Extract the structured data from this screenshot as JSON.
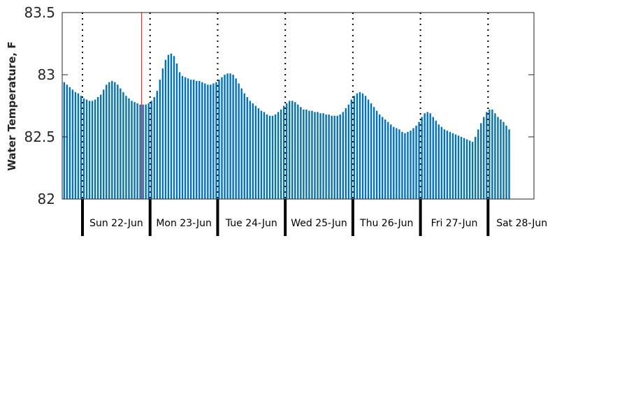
{
  "chart_data": {
    "type": "bar",
    "ylabel": "Water Temperature, F",
    "ylim": [
      82,
      83.5
    ],
    "yticks": [
      "82",
      "82.5",
      "83",
      "83.5"
    ],
    "bar_color": "#0072BD",
    "day_labels": [
      "Sun 22-Jun",
      "Mon 23-Jun",
      "Tue 24-Jun",
      "Wed 25-Jun",
      "Thu 26-Jun",
      "Fri 27-Jun",
      "Sat 28-Jun"
    ],
    "marker_color": "#FF0000",
    "hours_per_day": 24,
    "start_hour_offset": -7,
    "current_time_marker_hour": 21,
    "values": [
      82.94,
      82.92,
      82.9,
      82.88,
      82.86,
      82.85,
      82.83,
      82.81,
      82.8,
      82.79,
      82.79,
      82.8,
      82.82,
      82.84,
      82.88,
      82.92,
      82.94,
      82.95,
      82.94,
      82.92,
      82.89,
      82.86,
      82.83,
      82.81,
      82.79,
      82.78,
      82.77,
      82.76,
      82.76,
      82.76,
      82.77,
      82.79,
      82.82,
      82.87,
      82.96,
      83.05,
      83.12,
      83.16,
      83.17,
      83.15,
      83.09,
      83.02,
      82.99,
      82.98,
      82.97,
      82.96,
      82.96,
      82.95,
      82.95,
      82.94,
      82.93,
      82.92,
      82.92,
      82.93,
      82.94,
      82.96,
      82.98,
      83.0,
      83.01,
      83.01,
      83.0,
      82.97,
      82.93,
      82.89,
      82.85,
      82.82,
      82.79,
      82.77,
      82.75,
      82.73,
      82.71,
      82.7,
      82.68,
      82.67,
      82.67,
      82.68,
      82.7,
      82.72,
      82.75,
      82.77,
      82.79,
      82.79,
      82.78,
      82.76,
      82.74,
      82.72,
      82.72,
      82.71,
      82.71,
      82.7,
      82.7,
      82.69,
      82.69,
      82.68,
      82.68,
      82.67,
      82.67,
      82.67,
      82.68,
      82.7,
      82.73,
      82.76,
      82.8,
      82.83,
      82.85,
      82.86,
      82.85,
      82.83,
      82.8,
      82.77,
      82.74,
      82.71,
      82.68,
      82.66,
      82.64,
      82.62,
      82.6,
      82.58,
      82.57,
      82.56,
      82.54,
      82.53,
      82.54,
      82.55,
      82.57,
      82.59,
      82.62,
      82.66,
      82.69,
      82.7,
      82.69,
      82.66,
      82.63,
      82.6,
      82.58,
      82.56,
      82.55,
      82.54,
      82.53,
      82.52,
      82.51,
      82.5,
      82.49,
      82.48,
      82.47,
      82.46,
      82.5,
      82.56,
      82.61,
      82.66,
      82.7,
      82.72,
      82.72,
      82.69,
      82.66,
      82.64,
      82.62,
      82.59,
      82.56
    ]
  }
}
